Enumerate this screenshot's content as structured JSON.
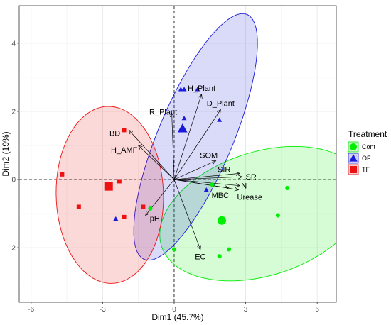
{
  "chart_data": {
    "type": "scatter",
    "subtype": "PCA biplot",
    "xlabel": "Dim1 (45.7%)",
    "ylabel": "Dim2 (19%)",
    "xlim": [
      -6.5,
      6.8
    ],
    "ylim": [
      -3.6,
      5.1
    ],
    "x_ticks": [
      -6,
      -3,
      0,
      3,
      6
    ],
    "y_ticks": [
      -2,
      0,
      2,
      4
    ],
    "grid": true,
    "legend": {
      "title": "Treatment",
      "position": "right",
      "entries": [
        {
          "label": "Cont",
          "color": "#00ee00",
          "shape": "circle"
        },
        {
          "label": "OF",
          "color": "#1a1adb",
          "shape": "triangle"
        },
        {
          "label": "TF",
          "color": "#ee1111",
          "shape": "square"
        }
      ]
    },
    "groups": [
      {
        "name": "Cont",
        "color": "#00ee00",
        "shape": "circle",
        "centroid": [
          2.0,
          -1.2
        ],
        "ellipse": {
          "center": [
            3.7,
            -1.0
          ],
          "rx": 4.36,
          "ry": 1.85,
          "angle": 10
        },
        "points": [
          [
            -1.0,
            -0.85
          ],
          [
            0.0,
            -2.05
          ],
          [
            1.6,
            -0.15
          ],
          [
            1.9,
            -2.25
          ],
          [
            2.3,
            -2.05
          ],
          [
            4.35,
            -1.05
          ],
          [
            4.75,
            -0.25
          ]
        ]
      },
      {
        "name": "OF",
        "color": "#1a1adb",
        "shape": "triangle",
        "centroid": [
          0.35,
          1.5
        ],
        "ellipse": {
          "center": [
            0.9,
            1.25
          ],
          "rx": 4.21,
          "ry": 1.45,
          "angle": 57
        },
        "points": [
          [
            -2.45,
            -1.15
          ],
          [
            0.28,
            2.65
          ],
          [
            0.42,
            2.65
          ],
          [
            0.98,
            2.65
          ],
          [
            0.42,
            1.8
          ],
          [
            1.9,
            1.75
          ],
          [
            1.35,
            -0.3
          ]
        ]
      },
      {
        "name": "TF",
        "color": "#ee1111",
        "shape": "square",
        "centroid": [
          -2.75,
          -0.2
        ],
        "ellipse": {
          "center": [
            -2.7,
            -0.45
          ],
          "rx": 2.6,
          "ry": 2.25,
          "angle": 95
        },
        "points": [
          [
            -4.7,
            0.15
          ],
          [
            -4.0,
            -0.8
          ],
          [
            -2.1,
            1.45
          ],
          [
            -2.3,
            -0.05
          ],
          [
            -1.3,
            -0.8
          ],
          [
            -2.1,
            -1.1
          ]
        ]
      }
    ],
    "variables": [
      {
        "name": "H_Plant",
        "x": 1.15,
        "y": 2.5
      },
      {
        "name": "D_Plant",
        "x": 1.95,
        "y": 2.05
      },
      {
        "name": "R_Plant",
        "x": -0.1,
        "y": 1.95
      },
      {
        "name": "BD",
        "x": -1.9,
        "y": 1.45
      },
      {
        "name": "H_AMF",
        "x": -1.5,
        "y": 1.0
      },
      {
        "name": "SOM",
        "x": 1.75,
        "y": 0.55
      },
      {
        "name": "SIR",
        "x": 2.75,
        "y": 0.18
      },
      {
        "name": "SR",
        "x": 2.85,
        "y": 0.08
      },
      {
        "name": "N",
        "x": 2.75,
        "y": -0.18
      },
      {
        "name": "MBC",
        "x": 2.3,
        "y": -0.25
      },
      {
        "name": "Urease",
        "x": 2.7,
        "y": -0.3
      },
      {
        "name": "pH",
        "x": -1.2,
        "y": -1.05
      },
      {
        "name": "EC",
        "x": 1.1,
        "y": -2.05
      }
    ]
  }
}
